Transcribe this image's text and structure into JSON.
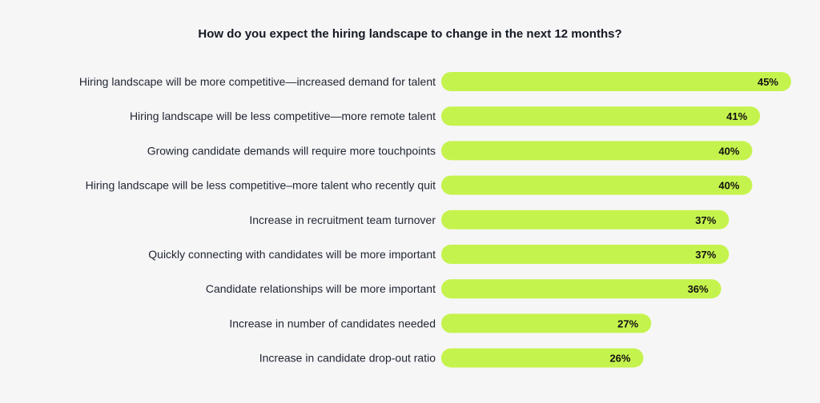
{
  "colors": {
    "background": "#f6f6f7",
    "bar": "#c5f34d",
    "text": "#1f2430",
    "title": "#151922"
  },
  "chart_data": {
    "type": "bar",
    "orientation": "horizontal",
    "title": "How do you expect the hiring landscape to change in the next 12 months?",
    "xlabel": "",
    "ylabel": "",
    "grid": false,
    "legend": "none",
    "xlim": [
      0,
      45
    ],
    "unit": "%",
    "categories": [
      "Hiring landscape will be more competitive—increased demand for talent",
      "Hiring landscape will be less competitive—more remote talent",
      "Growing candidate demands will require more touchpoints",
      "Hiring landscape will be less competitive–more talent who recently quit",
      "Increase in recruitment team turnover",
      "Quickly connecting with candidates will be more important",
      "Candidate relationships will be more important",
      "Increase in number of candidates needed",
      "Increase in candidate drop-out ratio"
    ],
    "values": [
      45,
      41,
      40,
      40,
      37,
      37,
      36,
      27,
      26
    ],
    "value_labels": [
      "45%",
      "41%",
      "40%",
      "40%",
      "37%",
      "37%",
      "36%",
      "27%",
      "26%"
    ]
  }
}
